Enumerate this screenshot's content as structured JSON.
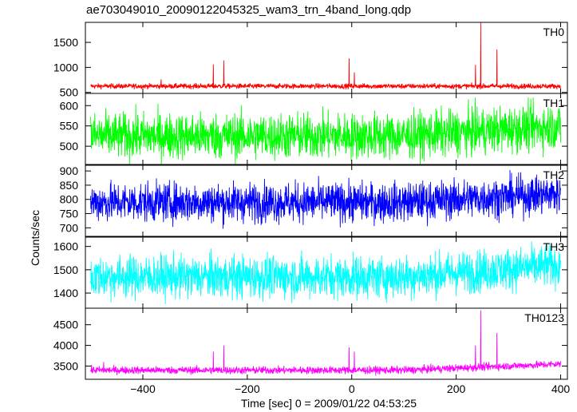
{
  "chart_data": {
    "type": "line",
    "title": "ae703049010_20090122045325_wam3_trn_4band_long.qdp",
    "xlabel": "Time [sec] 0 = 2009/01/22 04:53:25",
    "ylabel": "Counts/sec",
    "xlim": [
      -510,
      413
    ],
    "xticks": [
      -400,
      -200,
      0,
      200,
      400
    ],
    "grid": false,
    "panels": [
      {
        "name": "TH0",
        "color": "#ff0000",
        "ylim": [
          480,
          1900
        ],
        "yticks": [
          500,
          1000,
          1500
        ],
        "baseline": 625,
        "noise": 25,
        "trend": 0,
        "spikes": [
          {
            "x": -365,
            "y": 760
          },
          {
            "x": -265,
            "y": 1060
          },
          {
            "x": -245,
            "y": 1140
          },
          {
            "x": -5,
            "y": 1180
          },
          {
            "x": 5,
            "y": 900
          },
          {
            "x": 237,
            "y": 1050
          },
          {
            "x": 247,
            "y": 1900
          },
          {
            "x": 278,
            "y": 1360
          }
        ]
      },
      {
        "name": "TH1",
        "color": "#00ff00",
        "ylim": [
          455,
          630
        ],
        "yticks": [
          500,
          550,
          600
        ],
        "baseline": 525,
        "noise": 28,
        "trend": 25,
        "spikes": []
      },
      {
        "name": "TH2",
        "color": "#0000ff",
        "ylim": [
          670,
          920
        ],
        "yticks": [
          700,
          750,
          800,
          850,
          900
        ],
        "baseline": 790,
        "noise": 34,
        "trend": 30,
        "spikes": []
      },
      {
        "name": "TH3",
        "color": "#00ffff",
        "ylim": [
          1335,
          1640
        ],
        "yticks": [
          1400,
          1500,
          1600
        ],
        "baseline": 1470,
        "noise": 45,
        "trend": 50,
        "spikes": []
      },
      {
        "name": "TH0123",
        "color": "#ff00ff",
        "ylim": [
          3180,
          4900
        ],
        "yticks": [
          3500,
          4000,
          4500
        ],
        "baseline": 3400,
        "noise": 45,
        "trend": 150,
        "spikes": [
          {
            "x": -475,
            "y": 3600
          },
          {
            "x": -265,
            "y": 3850
          },
          {
            "x": -245,
            "y": 4000
          },
          {
            "x": -5,
            "y": 3950
          },
          {
            "x": 5,
            "y": 3850
          },
          {
            "x": 237,
            "y": 4000
          },
          {
            "x": 247,
            "y": 4850
          },
          {
            "x": 278,
            "y": 4300
          }
        ]
      }
    ]
  }
}
